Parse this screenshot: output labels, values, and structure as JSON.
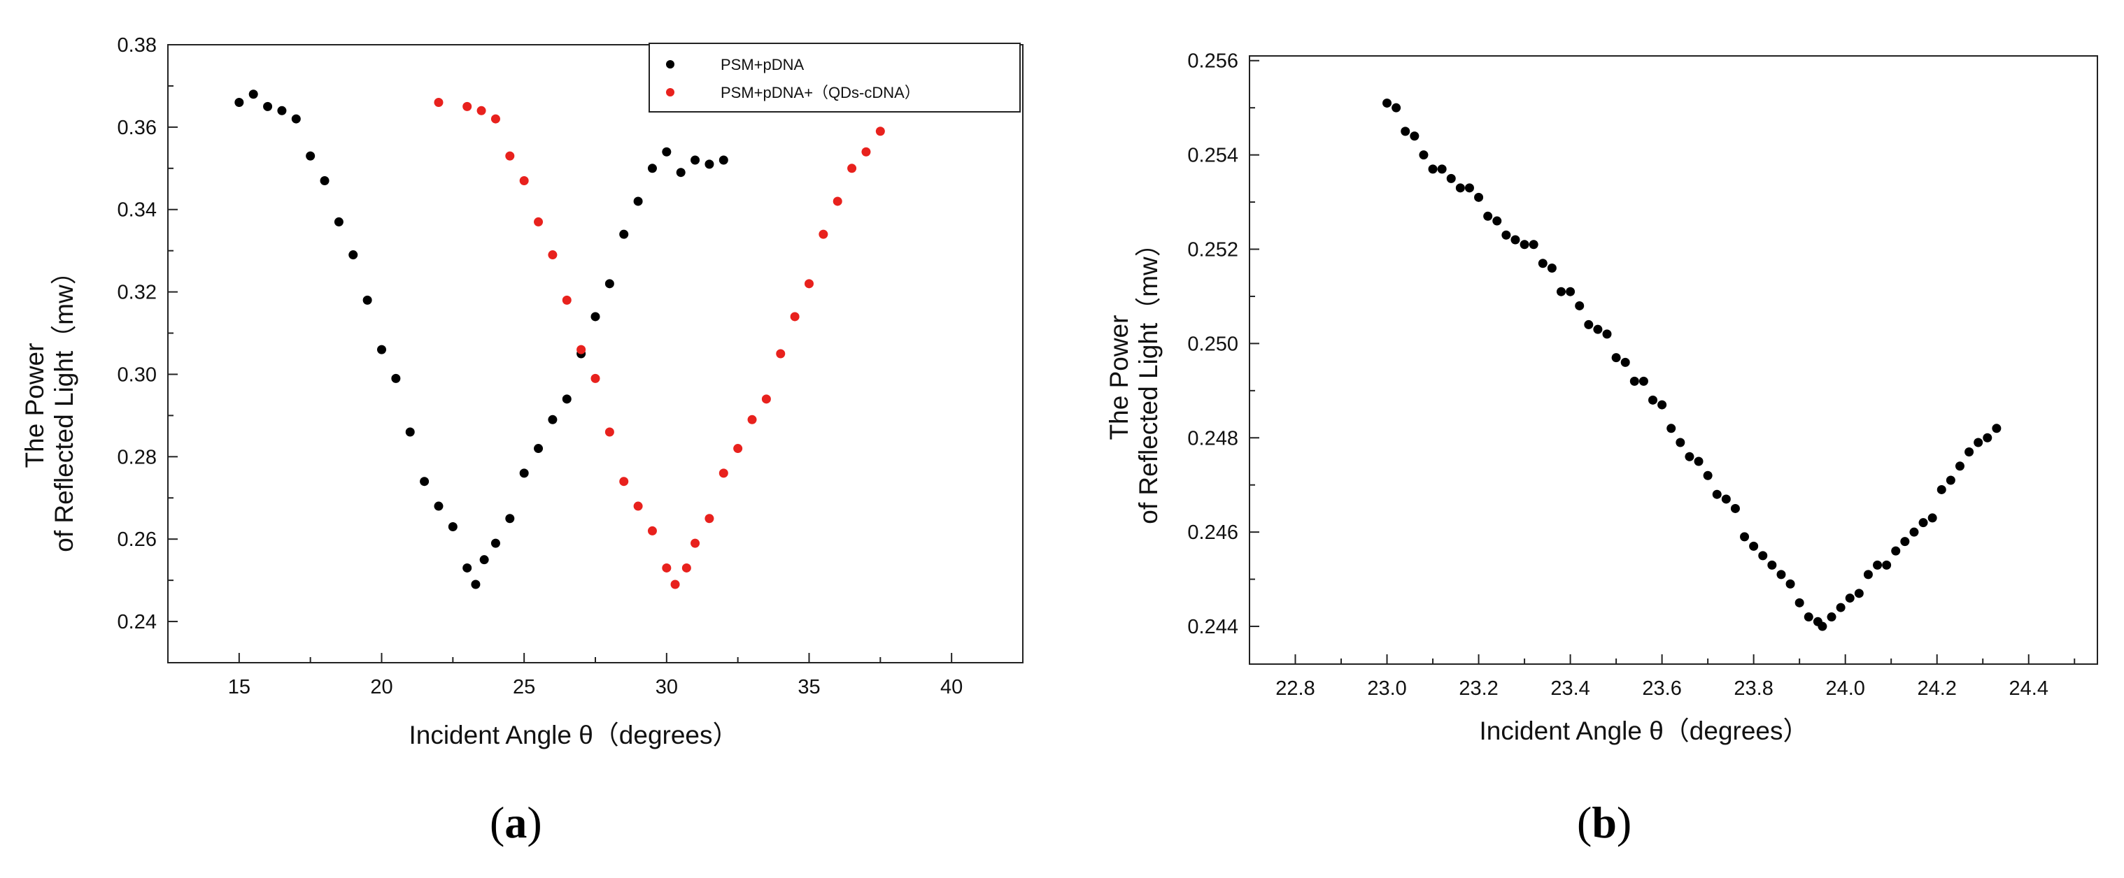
{
  "chart_data": [
    {
      "type": "scatter",
      "panel_label_prefix": "(",
      "panel_label_letter": "a",
      "panel_label_suffix": ")",
      "xlabel": "Incident  Angle θ（degrees）",
      "ylabel_line1": "The Power",
      "ylabel_line2": "of Reflected Light（mw）",
      "xlim": [
        12.5,
        42.5
      ],
      "ylim": [
        0.23,
        0.38
      ],
      "xticks": [
        15,
        20,
        25,
        30,
        35,
        40
      ],
      "xtick_labels": [
        "15",
        "20",
        "25",
        "30",
        "35",
        "40"
      ],
      "yticks": [
        0.24,
        0.26,
        0.28,
        0.3,
        0.32,
        0.34,
        0.36,
        0.38
      ],
      "ytick_labels": [
        "0.24",
        "0.26",
        "0.28",
        "0.30",
        "0.32",
        "0.34",
        "0.36",
        "0.38"
      ],
      "legend_position": "top-right",
      "series": [
        {
          "name": "PSM+pDNA",
          "color": "#000000",
          "x": [
            15.0,
            15.5,
            16.0,
            16.5,
            17.0,
            17.5,
            18.0,
            18.5,
            19.0,
            19.5,
            20.0,
            20.5,
            21.0,
            21.5,
            22.0,
            22.5,
            23.0,
            23.3,
            23.6,
            24.0,
            24.5,
            25.0,
            25.5,
            26.0,
            26.5,
            27.0,
            27.5,
            28.0,
            28.5,
            29.0,
            29.5,
            30.0,
            30.5,
            31.0,
            31.5,
            32.0
          ],
          "y": [
            0.366,
            0.368,
            0.365,
            0.364,
            0.362,
            0.353,
            0.347,
            0.337,
            0.329,
            0.318,
            0.306,
            0.299,
            0.286,
            0.274,
            0.268,
            0.263,
            0.253,
            0.249,
            0.255,
            0.259,
            0.265,
            0.276,
            0.282,
            0.289,
            0.294,
            0.305,
            0.314,
            0.322,
            0.334,
            0.342,
            0.35,
            0.354,
            0.349,
            0.352,
            0.351,
            0.352
          ]
        },
        {
          "name": "PSM+pDNA+（QDs-cDNA）",
          "color": "#e8211d",
          "x": [
            22.0,
            23.0,
            23.5,
            24.0,
            24.5,
            25.0,
            25.5,
            26.0,
            26.5,
            27.0,
            27.5,
            28.0,
            28.5,
            29.0,
            29.5,
            30.0,
            30.3,
            30.7,
            31.0,
            31.5,
            32.0,
            32.5,
            33.0,
            33.5,
            34.0,
            34.5,
            35.0,
            35.5,
            36.0,
            36.5,
            37.0,
            37.5
          ],
          "y": [
            0.366,
            0.365,
            0.364,
            0.362,
            0.353,
            0.347,
            0.337,
            0.329,
            0.318,
            0.306,
            0.299,
            0.286,
            0.274,
            0.268,
            0.262,
            0.253,
            0.249,
            0.253,
            0.259,
            0.265,
            0.276,
            0.282,
            0.289,
            0.294,
            0.305,
            0.314,
            0.322,
            0.334,
            0.342,
            0.35,
            0.354,
            0.359
          ]
        }
      ]
    },
    {
      "type": "scatter",
      "panel_label_prefix": "(",
      "panel_label_letter": "b",
      "panel_label_suffix": ")",
      "xlabel": "Incident  Angle θ（degrees）",
      "ylabel_line1": "The Power",
      "ylabel_line2": "of Reflected Light（mw）",
      "xlim": [
        22.7,
        24.55
      ],
      "ylim": [
        0.2432,
        0.2561
      ],
      "xticks": [
        22.8,
        23.0,
        23.2,
        23.4,
        23.6,
        23.8,
        24.0,
        24.2,
        24.4
      ],
      "xtick_labels": [
        "22.8",
        "23.0",
        "23.2",
        "23.4",
        "23.6",
        "23.8",
        "24.0",
        "24.2",
        "24.4"
      ],
      "yticks": [
        0.244,
        0.246,
        0.248,
        0.25,
        0.252,
        0.254,
        0.256
      ],
      "ytick_labels": [
        "0.244",
        "0.246",
        "0.248",
        "0.250",
        "0.252",
        "0.254",
        "0.256"
      ],
      "series": [
        {
          "name": "",
          "color": "#000000",
          "x": [
            23.0,
            23.02,
            23.04,
            23.06,
            23.08,
            23.1,
            23.12,
            23.14,
            23.16,
            23.18,
            23.2,
            23.22,
            23.24,
            23.26,
            23.28,
            23.3,
            23.32,
            23.34,
            23.36,
            23.38,
            23.4,
            23.42,
            23.44,
            23.46,
            23.48,
            23.5,
            23.52,
            23.54,
            23.56,
            23.58,
            23.6,
            23.62,
            23.64,
            23.66,
            23.68,
            23.7,
            23.72,
            23.74,
            23.76,
            23.78,
            23.8,
            23.82,
            23.84,
            23.86,
            23.88,
            23.9,
            23.92,
            23.94,
            23.95,
            23.97,
            23.99,
            24.01,
            24.03,
            24.05,
            24.07,
            24.09,
            24.11,
            24.13,
            24.15,
            24.17,
            24.19,
            24.21,
            24.23,
            24.25,
            24.27,
            24.29,
            24.31,
            24.33
          ],
          "y": [
            0.2551,
            0.255,
            0.2545,
            0.2544,
            0.254,
            0.2537,
            0.2537,
            0.2535,
            0.2533,
            0.2533,
            0.2531,
            0.2527,
            0.2526,
            0.2523,
            0.2522,
            0.2521,
            0.2521,
            0.2517,
            0.2516,
            0.2511,
            0.2511,
            0.2508,
            0.2504,
            0.2503,
            0.2502,
            0.2497,
            0.2496,
            0.2492,
            0.2492,
            0.2488,
            0.2487,
            0.2482,
            0.2479,
            0.2476,
            0.2475,
            0.2472,
            0.2468,
            0.2467,
            0.2465,
            0.2459,
            0.2457,
            0.2455,
            0.2453,
            0.2451,
            0.2449,
            0.2445,
            0.2442,
            0.2441,
            0.244,
            0.2442,
            0.2444,
            0.2446,
            0.2447,
            0.2451,
            0.2453,
            0.2453,
            0.2456,
            0.2458,
            0.246,
            0.2462,
            0.2463,
            0.2469,
            0.2471,
            0.2474,
            0.2477,
            0.2479,
            0.248,
            0.2482
          ]
        }
      ]
    }
  ]
}
